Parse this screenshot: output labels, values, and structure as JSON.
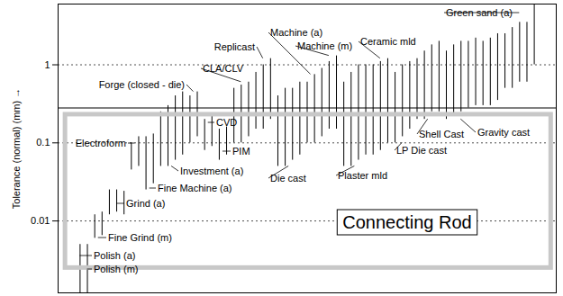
{
  "chart_data": {
    "type": "range",
    "ylabel": "Tolerance (normal) (mm)",
    "log": "y",
    "ylim": [
      0.0012,
      6
    ],
    "yticks": [
      0.01,
      0.1,
      1
    ],
    "grid": true,
    "tick_labels": "y",
    "color": "#000000",
    "reference_lines": [
      0.28
    ],
    "processes": [
      {
        "name": "Polish (a)",
        "ranges": [
          [
            0.001,
            0.005
          ]
        ]
      },
      {
        "name": "Polish (m)",
        "ranges": [
          [
            0.001,
            0.005
          ]
        ]
      },
      {
        "name": "Fine Grind (m)",
        "ranges": [
          [
            0.006,
            0.012
          ],
          [
            0.0065,
            0.013
          ]
        ]
      },
      {
        "name": "Grind (a)",
        "ranges": [
          [
            0.012,
            0.025
          ],
          [
            0.013,
            0.025
          ],
          [
            0.012,
            0.024
          ]
        ]
      },
      {
        "name": "Electroform",
        "ranges": [
          [
            0.045,
            0.1
          ],
          [
            0.05,
            0.12
          ]
        ]
      },
      {
        "name": "Fine Machine (a)",
        "ranges": [
          [
            0.025,
            0.12
          ],
          [
            0.03,
            0.13
          ]
        ]
      },
      {
        "name": "Investment (a)",
        "ranges": [
          [
            0.05,
            0.25
          ],
          [
            0.05,
            0.3
          ],
          [
            0.06,
            0.4
          ],
          [
            0.07,
            0.45
          ]
        ]
      },
      {
        "name": "Forge (closed - die)",
        "ranges": [
          [
            0.1,
            0.4
          ],
          [
            0.12,
            0.45
          ]
        ]
      },
      {
        "name": "CVD",
        "ranges": [
          [
            0.08,
            0.2
          ],
          [
            0.09,
            0.22
          ]
        ]
      },
      {
        "name": "PIM",
        "ranges": [
          [
            0.06,
            0.15
          ],
          [
            0.07,
            0.16
          ]
        ]
      },
      {
        "name": "CLA/CLV",
        "ranges": [
          [
            0.1,
            0.5
          ],
          [
            0.1,
            0.55
          ],
          [
            0.12,
            0.6
          ]
        ]
      },
      {
        "name": "Replicast",
        "ranges": [
          [
            0.15,
            0.8
          ],
          [
            0.15,
            1
          ],
          [
            0.2,
            1.2
          ]
        ]
      },
      {
        "name": "Die cast",
        "ranges": [
          [
            0.05,
            0.4
          ],
          [
            0.05,
            0.5
          ],
          [
            0.06,
            0.5
          ],
          [
            0.07,
            0.6
          ]
        ]
      },
      {
        "name": "Machine (a)",
        "ranges": [
          [
            0.1,
            0.6
          ],
          [
            0.1,
            0.75
          ]
        ]
      },
      {
        "name": "Machine (m)",
        "ranges": [
          [
            0.12,
            0.9
          ],
          [
            0.15,
            1.1
          ],
          [
            0.15,
            1.3
          ]
        ]
      },
      {
        "name": "Plaster mld",
        "ranges": [
          [
            0.05,
            0.6
          ],
          [
            0.05,
            0.8
          ],
          [
            0.06,
            1
          ],
          [
            0.07,
            1
          ]
        ]
      },
      {
        "name": "Ceramic mld",
        "ranges": [
          [
            0.07,
            1
          ],
          [
            0.08,
            1.1
          ],
          [
            0.1,
            1.2
          ]
        ]
      },
      {
        "name": "LP Die cast",
        "ranges": [
          [
            0.1,
            0.8
          ],
          [
            0.12,
            1
          ],
          [
            0.15,
            1.1
          ]
        ]
      },
      {
        "name": "Shell Cast",
        "ranges": [
          [
            0.2,
            1.2
          ],
          [
            0.2,
            1.5
          ],
          [
            0.25,
            1.8
          ],
          [
            0.25,
            2
          ]
        ]
      },
      {
        "name": "Gravity cast",
        "ranges": [
          [
            0.2,
            1.5
          ],
          [
            0.22,
            1.8
          ],
          [
            0.25,
            2
          ],
          [
            0.28,
            2
          ],
          [
            0.3,
            2.2
          ]
        ]
      },
      {
        "name": null,
        "ranges": [
          [
            0.3,
            2
          ],
          [
            0.3,
            2.2
          ],
          [
            0.35,
            2.5
          ]
        ]
      },
      {
        "name": "Green sand (a)",
        "ranges": [
          [
            0.5,
            2.5
          ],
          [
            0.5,
            3
          ],
          [
            0.6,
            3.5
          ],
          [
            0.6,
            3.5
          ],
          [
            1,
            6
          ]
        ]
      }
    ],
    "annotation": {
      "text": "Connecting Rod",
      "low": 0.0025,
      "high": 0.23
    }
  }
}
